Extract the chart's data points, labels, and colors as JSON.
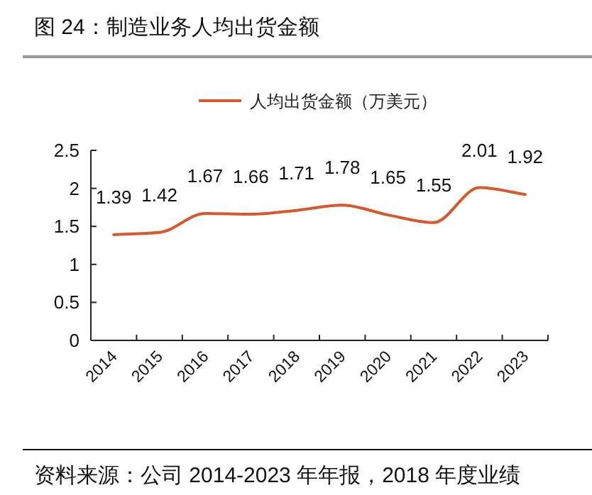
{
  "chart_data": {
    "type": "line",
    "title": "图 24：制造业务人均出货金额",
    "categories": [
      "2014",
      "2015",
      "2016",
      "2017",
      "2018",
      "2019",
      "2020",
      "2021",
      "2022",
      "2023"
    ],
    "series": [
      {
        "name": "人均出货金额（万美元）",
        "color": "#d9582b",
        "values": [
          1.39,
          1.42,
          1.67,
          1.66,
          1.71,
          1.78,
          1.65,
          1.55,
          2.01,
          1.92
        ]
      }
    ],
    "ylim": [
      0,
      2.5
    ],
    "yticks": [
      0,
      0.5,
      1,
      1.5,
      2,
      2.5
    ],
    "data_labels": true,
    "legend": "top",
    "grid": false,
    "marker": "none",
    "line_style": "solid",
    "annotations": [
      "资料来源：公司 2014-2023 年年报，2018 年度业绩"
    ]
  }
}
